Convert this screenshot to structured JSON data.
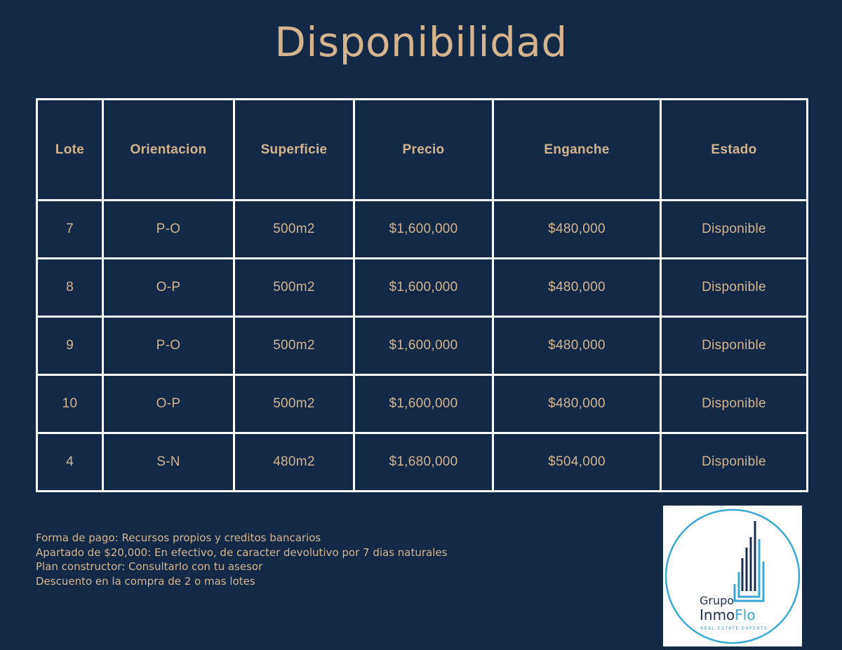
{
  "title": "Disponibilidad",
  "table": {
    "headers": [
      "Lote",
      "Orientacion",
      "Superficie",
      "Precio",
      "Enganche",
      "Estado"
    ],
    "rows": [
      [
        "7",
        "P-O",
        "500m2",
        "$1,600,000",
        "$480,000",
        "Disponible"
      ],
      [
        "8",
        "O-P",
        "500m2",
        "$1,600,000",
        "$480,000",
        "Disponible"
      ],
      [
        "9",
        "P-O",
        "500m2",
        "$1,600,000",
        "$480,000",
        "Disponible"
      ],
      [
        "10",
        "O-P",
        "500m2",
        "$1,600,000",
        "$480,000",
        "Disponible"
      ],
      [
        "4",
        "S-N",
        "480m2",
        "$1,680,000",
        "$504,000",
        "Disponible"
      ]
    ]
  },
  "notes": [
    "Forma de pago: Recursos propios y creditos bancarios",
    "Apartado de $20,000: En efectivo, de caracter devolutivo por 7 dias naturales",
    "Plan constructor: Consultarlo con tu asesor",
    "Descuento en la compra de 2 o mas lotes"
  ],
  "logo": {
    "line1": "Grupo",
    "line2a": "Inmo",
    "line2b": "Flo",
    "tagline": "REAL ESTATE EXPERTS"
  },
  "colors": {
    "background": "#132946",
    "accent": "#d4b48e",
    "grid": "#ffffff",
    "logo_navy": "#1c2f4f",
    "logo_blue": "#3aa7d3"
  }
}
